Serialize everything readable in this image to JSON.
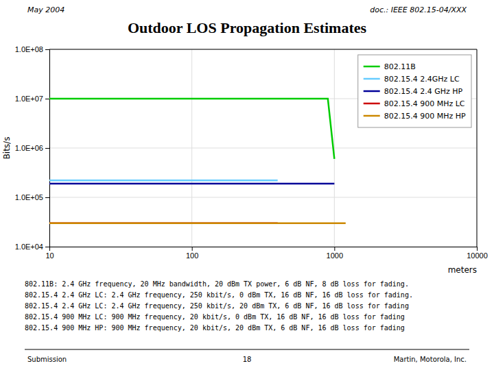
{
  "chart_data": {
    "type": "line",
    "title": "Outdoor LOS Propagation Estimates",
    "header": [
      "May 2004",
      "doc.: IEEE 802.15-04/XXX"
    ],
    "x_label": "meters",
    "y_label": "Bits/s",
    "log": true,
    "grid": true,
    "legend": "top-right",
    "xlim": [
      10,
      10000
    ],
    "ylim": [
      10000,
      100000000
    ],
    "xticks": [
      10,
      100,
      1000,
      10000
    ],
    "yticks": [
      {
        "value": 10000,
        "label": "1.0E+04"
      },
      {
        "value": 100000,
        "label": "1.0E+05"
      },
      {
        "value": 1000000,
        "label": "1.0E+06"
      },
      {
        "value": 10000000,
        "label": "1.0E+07"
      },
      {
        "value": 100000000,
        "label": "1.0E+08"
      }
    ],
    "series": [
      {
        "name": "802.11B",
        "color": "#00cc00",
        "x": [
          10,
          900,
          900,
          1000,
          1000
        ],
        "values": [
          10000000,
          10000000,
          10000000,
          600000,
          600000
        ]
      },
      {
        "name": "802.15.4 2.4GHz LC",
        "color": "#66ccff",
        "x": [
          10,
          400,
          400
        ],
        "values": [
          220000,
          220000,
          220000
        ]
      },
      {
        "name": "802.15.4 2.4 GHz HP",
        "color": "#000099",
        "x": [
          10,
          1000,
          1000
        ],
        "values": [
          190000,
          190000,
          190000
        ]
      },
      {
        "name": "802.15.4 900 MHz LC",
        "color": "#cc0000",
        "x": [
          10,
          400,
          400
        ],
        "values": [
          30000,
          30000,
          30000
        ]
      },
      {
        "name": "802.15.4 900 MHz HP",
        "color": "#cc8800",
        "x": [
          10,
          1200,
          1200
        ],
        "values": [
          30000,
          30000,
          30000
        ]
      }
    ],
    "notes": [
      "802.11B:  2.4 GHz frequency, 20 MHz bandwidth, 20 dBm TX power, 6 dB NF, 8 dB loss for fading.",
      "802.15.4 2.4 GHz LC:  2.4 GHz frequency, 250 kbit/s, 0 dBm TX, 16 dB NF, 16 dB loss for fading.",
      "802.15.4 2.4 GHz LC:  2.4 GHz frequency, 250 kbit/s, 20 dBm TX, 6 dB NF, 16 dB loss for fading",
      "802.15.4 900 MHz LC:  900 MHz frequency, 20 kbit/s, 0 dBm TX, 16 dB NF, 16 dB loss for fading",
      "802.15.4 900 MHz HP:  900 MHz frequency, 20 kbit/s, 20 dBm TX, 6 dB NF, 16 dB loss for fading"
    ],
    "footer": [
      "Submission",
      "18",
      "Martin, Motorola, Inc."
    ]
  }
}
